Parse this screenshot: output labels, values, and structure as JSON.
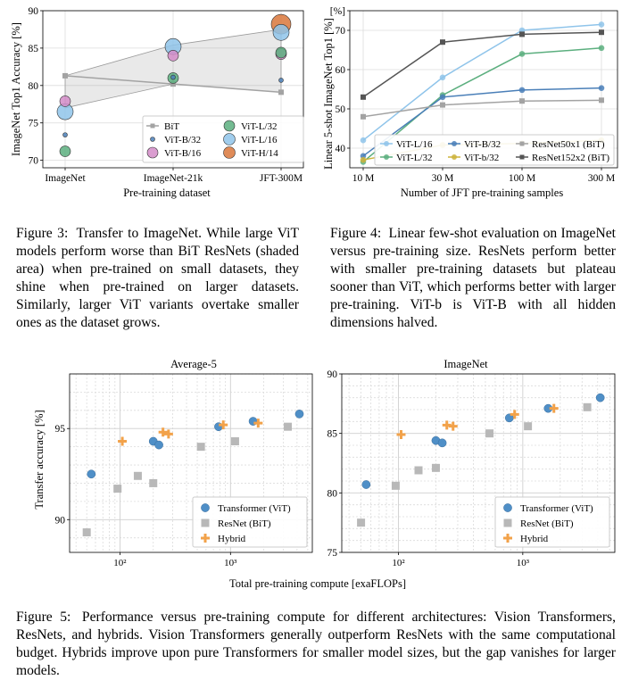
{
  "chart_data": [
    {
      "id": "fig3",
      "type": "scatter",
      "title": "",
      "xlabel": "Pre-training dataset",
      "ylabel": "ImageNet Top1 Accuracy [%]",
      "categories": [
        "ImageNet",
        "ImageNet-21k",
        "JFT-300M"
      ],
      "ylim": [
        69,
        90
      ],
      "yticks": [
        70,
        75,
        80,
        85,
        90
      ],
      "grid": true,
      "legend_placement": "lower-right",
      "shaded_area": {
        "name": "BiT",
        "upper": [
          81.3,
          85.4,
          87.5
        ],
        "lower": [
          77.0,
          80.2,
          79.1
        ]
      },
      "series": [
        {
          "name": "BiT",
          "marker": "square-line",
          "color": "#a3a3a3",
          "values": [
            81.3,
            80.2,
            79.1
          ]
        },
        {
          "name": "ViT-B/32",
          "color": "#4a7fb8",
          "size": 2.5,
          "values": [
            73.4,
            81.1,
            80.7
          ]
        },
        {
          "name": "ViT-B/16",
          "color": "#d48cc8",
          "size": 6,
          "values": [
            77.9,
            84.0,
            84.2
          ]
        },
        {
          "name": "ViT-L/32",
          "color": "#5caf7f",
          "size": 6,
          "values": [
            71.2,
            81.0,
            84.4
          ]
        },
        {
          "name": "ViT-L/16",
          "color": "#8fc4ea",
          "size": 9,
          "values": [
            76.5,
            85.2,
            87.1
          ]
        },
        {
          "name": "ViT-H/14",
          "color": "#d9773b",
          "size": 11,
          "values": [
            null,
            null,
            88.2
          ]
        }
      ]
    },
    {
      "id": "fig4",
      "type": "line",
      "title": "",
      "xlabel": "Number of JFT pre-training samples",
      "ylabel": "Linear 5-shot ImageNet Top1 [%]",
      "x": [
        "10 M",
        "30 M",
        "100 M",
        "300 M"
      ],
      "ylim": [
        35,
        75
      ],
      "yticks": [
        40,
        50,
        60,
        70
      ],
      "ytick_labels": [
        "40",
        "50",
        "60",
        "70"
      ],
      "top_tick_label": "[%]",
      "grid": true,
      "legend_placement": "lower-center",
      "series": [
        {
          "name": "ViT-L/16",
          "color": "#8fc4ea",
          "marker": "circle",
          "values": [
            42,
            58,
            70,
            71.5
          ]
        },
        {
          "name": "ViT-L/32",
          "color": "#5caf7f",
          "marker": "circle",
          "values": [
            36.5,
            53.5,
            64,
            65.5
          ]
        },
        {
          "name": "ViT-B/32",
          "color": "#4a7fb8",
          "marker": "circle",
          "values": [
            38,
            53,
            54.8,
            55.3
          ]
        },
        {
          "name": "ViT-b/32",
          "color": "#cdb33b",
          "marker": "circle",
          "values": [
            37,
            40.8,
            41.2,
            42
          ]
        },
        {
          "name": "ResNet50x1 (BiT)",
          "color": "#a3a3a3",
          "marker": "square",
          "values": [
            48,
            51,
            52,
            52.2
          ]
        },
        {
          "name": "ResNet152x2 (BiT)",
          "color": "#555555",
          "marker": "square",
          "values": [
            53,
            67,
            69,
            69.5
          ]
        }
      ]
    },
    {
      "id": "fig5a",
      "type": "scatter",
      "title": "Average-5",
      "xlabel": "",
      "ylabel": "Transfer accuracy [%]",
      "xscale": "log",
      "xlim": [
        35,
        5500
      ],
      "xticks": [
        100,
        1000
      ],
      "xtick_labels": [
        "10²",
        "10³"
      ],
      "ylim": [
        88.2,
        98
      ],
      "yticks": [
        90,
        95
      ],
      "grid": true,
      "legend_placement": "lower-right",
      "series": [
        {
          "name": "Transformer (ViT)",
          "marker": "circle",
          "color": "#4f8fc7",
          "points": [
            [
              55,
              92.5
            ],
            [
              200,
              94.3
            ],
            [
              225,
              94.1
            ],
            [
              780,
              95.1
            ],
            [
              1600,
              95.4
            ],
            [
              4200,
              95.8
            ]
          ]
        },
        {
          "name": "ResNet (BiT)",
          "marker": "square",
          "color": "#b8b8b8",
          "points": [
            [
              50,
              89.3
            ],
            [
              95,
              91.7
            ],
            [
              145,
              92.4
            ],
            [
              200,
              92.0
            ],
            [
              540,
              94.0
            ],
            [
              1100,
              94.3
            ],
            [
              3300,
              95.1
            ]
          ]
        },
        {
          "name": "Hybrid",
          "marker": "plus",
          "color": "#f2a24a",
          "points": [
            [
              105,
              94.3
            ],
            [
              245,
              94.8
            ],
            [
              275,
              94.7
            ],
            [
              860,
              95.2
            ],
            [
              1780,
              95.3
            ]
          ]
        }
      ]
    },
    {
      "id": "fig5b",
      "type": "scatter",
      "title": "ImageNet",
      "xlabel": "",
      "ylabel": "",
      "xscale": "log",
      "xlim": [
        35,
        5500
      ],
      "xticks": [
        100,
        1000
      ],
      "xtick_labels": [
        "10²",
        "10³"
      ],
      "ylim": [
        75,
        90
      ],
      "yticks": [
        75,
        80,
        85,
        90
      ],
      "grid": true,
      "legend_placement": "lower-right",
      "series": [
        {
          "name": "Transformer (ViT)",
          "marker": "circle",
          "color": "#4f8fc7",
          "points": [
            [
              55,
              80.7
            ],
            [
              200,
              84.4
            ],
            [
              225,
              84.2
            ],
            [
              780,
              86.3
            ],
            [
              1600,
              87.1
            ],
            [
              4200,
              88.0
            ]
          ]
        },
        {
          "name": "ResNet (BiT)",
          "marker": "square",
          "color": "#b8b8b8",
          "points": [
            [
              50,
              77.5
            ],
            [
              95,
              80.6
            ],
            [
              145,
              81.9
            ],
            [
              200,
              82.1
            ],
            [
              540,
              85.0
            ],
            [
              1100,
              85.6
            ],
            [
              3300,
              87.2
            ]
          ]
        },
        {
          "name": "Hybrid",
          "marker": "plus",
          "color": "#f2a24a",
          "points": [
            [
              105,
              84.9
            ],
            [
              245,
              85.7
            ],
            [
              275,
              85.6
            ],
            [
              860,
              86.6
            ],
            [
              1780,
              87.1
            ]
          ]
        }
      ]
    }
  ],
  "shared_xlabel": "Total pre-training compute [exaFLOPs]",
  "captions": {
    "fig3": {
      "label": "Figure 3:",
      "text": "Transfer to ImageNet. While large ViT models perform worse than BiT ResNets (shaded area) when pre-trained on small datasets, they shine when pre-trained on larger datasets. Similarly, larger ViT variants overtake smaller ones as the dataset grows."
    },
    "fig4": {
      "label": "Figure 4:",
      "text": "Linear few-shot evaluation on ImageNet versus pre-training size. ResNets perform better with smaller pre-training datasets but plateau sooner than ViT, which performs better with larger pre-training. ViT-b is ViT-B with all hidden dimensions halved."
    },
    "fig5": {
      "label": "Figure 5:",
      "text": "Performance versus pre-training compute for different architectures: Vision Transformers, ResNets, and hybrids. Vision Transformers generally outperform ResNets with the same computational budget. Hybrids improve upon pure Transformers for smaller model sizes, but the gap vanishes for larger models."
    }
  }
}
